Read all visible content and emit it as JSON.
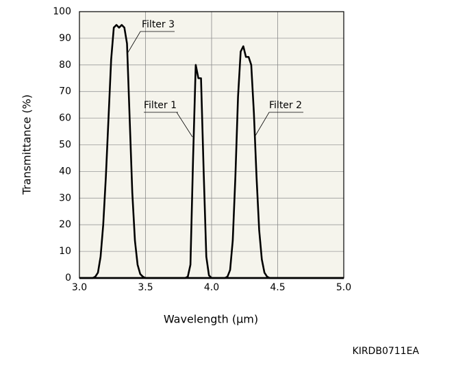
{
  "chart_data": {
    "type": "line",
    "x_label": "Wavelength (μm)",
    "y_label": "Transmittance (%)",
    "code": "KIRDB0711EA",
    "xlim": [
      3.0,
      5.0
    ],
    "ylim": [
      0,
      100
    ],
    "xticks": [
      {
        "value": 3,
        "label": "3.0"
      },
      3.5,
      {
        "value": 4,
        "label": "4.0"
      },
      4.5,
      {
        "value": 5,
        "label": "5.0"
      }
    ],
    "yticks": [
      0,
      10,
      20,
      30,
      40,
      50,
      60,
      70,
      80,
      90,
      100
    ],
    "grid": true,
    "series": [
      {
        "name": "Filter 1",
        "color": "#000000",
        "x": [
          3.0,
          3.8,
          3.82,
          3.84,
          3.86,
          3.88,
          3.9,
          3.92,
          3.94,
          3.96,
          3.98,
          4.0,
          5.0
        ],
        "values": [
          0,
          0,
          0.5,
          5,
          45,
          80,
          75,
          75,
          40,
          8,
          1,
          0,
          0
        ]
      },
      {
        "name": "Filter 2",
        "color": "#000000",
        "x": [
          3.0,
          4.1,
          4.12,
          4.14,
          4.16,
          4.18,
          4.2,
          4.22,
          4.24,
          4.26,
          4.28,
          4.3,
          4.32,
          4.34,
          4.36,
          4.38,
          4.4,
          4.42,
          4.44,
          5.0
        ],
        "values": [
          0,
          0,
          0.5,
          3,
          14,
          38,
          68,
          85,
          87,
          83,
          83,
          80,
          62,
          38,
          18,
          7,
          2,
          0.5,
          0,
          0
        ]
      },
      {
        "name": "Filter 3",
        "color": "#000000",
        "x": [
          3.0,
          3.1,
          3.12,
          3.14,
          3.16,
          3.18,
          3.2,
          3.22,
          3.24,
          3.26,
          3.28,
          3.3,
          3.32,
          3.34,
          3.36,
          3.38,
          3.4,
          3.42,
          3.44,
          3.46,
          3.48,
          3.5,
          5.0
        ],
        "values": [
          0,
          0,
          0.5,
          2,
          8,
          20,
          38,
          60,
          82,
          94,
          95,
          94,
          95,
          94,
          88,
          60,
          32,
          14,
          5,
          1.5,
          0.5,
          0,
          0
        ]
      }
    ]
  }
}
